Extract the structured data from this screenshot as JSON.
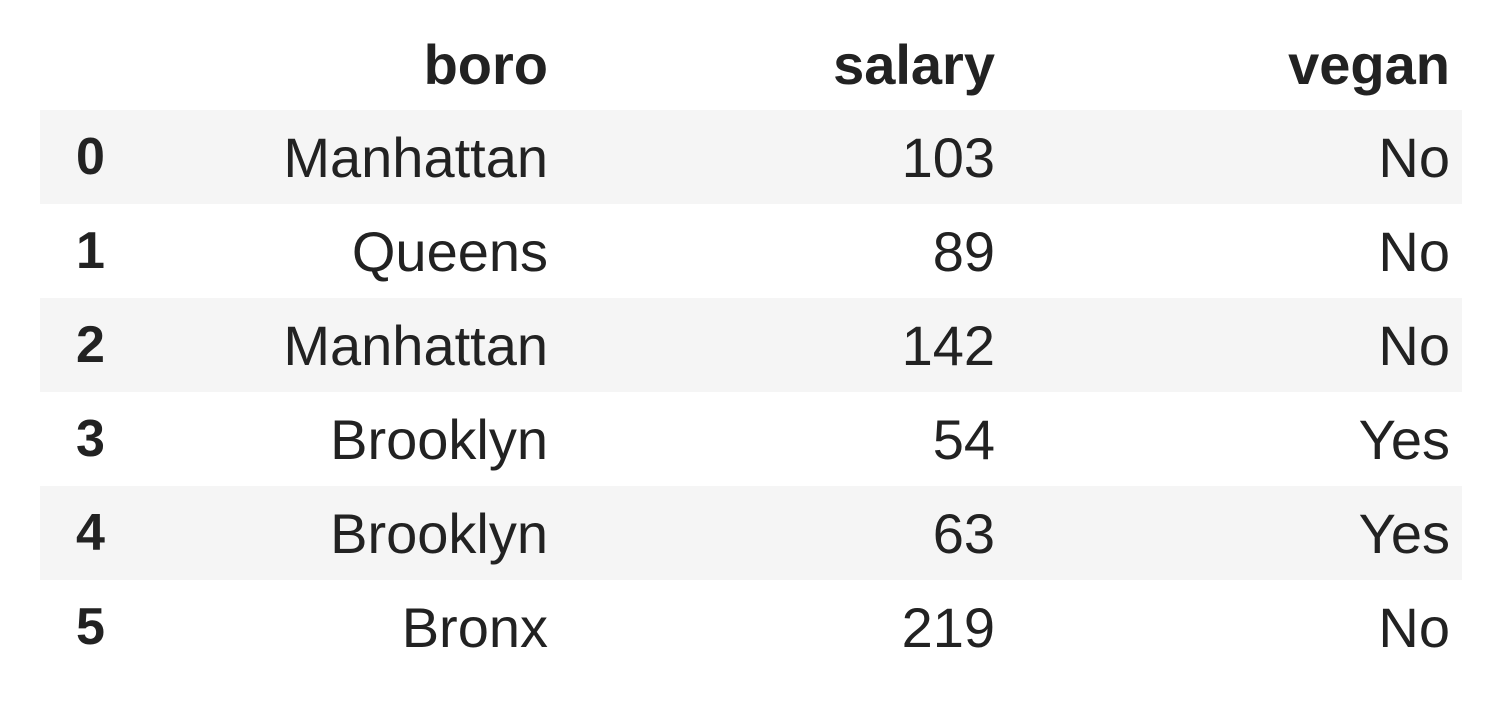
{
  "table": {
    "columns": [
      "boro",
      "salary",
      "vegan"
    ],
    "rows": [
      {
        "index": "0",
        "boro": "Manhattan",
        "salary": "103",
        "vegan": "No"
      },
      {
        "index": "1",
        "boro": "Queens",
        "salary": "89",
        "vegan": "No"
      },
      {
        "index": "2",
        "boro": "Manhattan",
        "salary": "142",
        "vegan": "No"
      },
      {
        "index": "3",
        "boro": "Brooklyn",
        "salary": "54",
        "vegan": "Yes"
      },
      {
        "index": "4",
        "boro": "Brooklyn",
        "salary": "63",
        "vegan": "Yes"
      },
      {
        "index": "5",
        "boro": "Bronx",
        "salary": "219",
        "vegan": "No"
      }
    ]
  },
  "colors": {
    "stripe": "#f5f5f5",
    "background": "#ffffff",
    "text": "#222222"
  }
}
